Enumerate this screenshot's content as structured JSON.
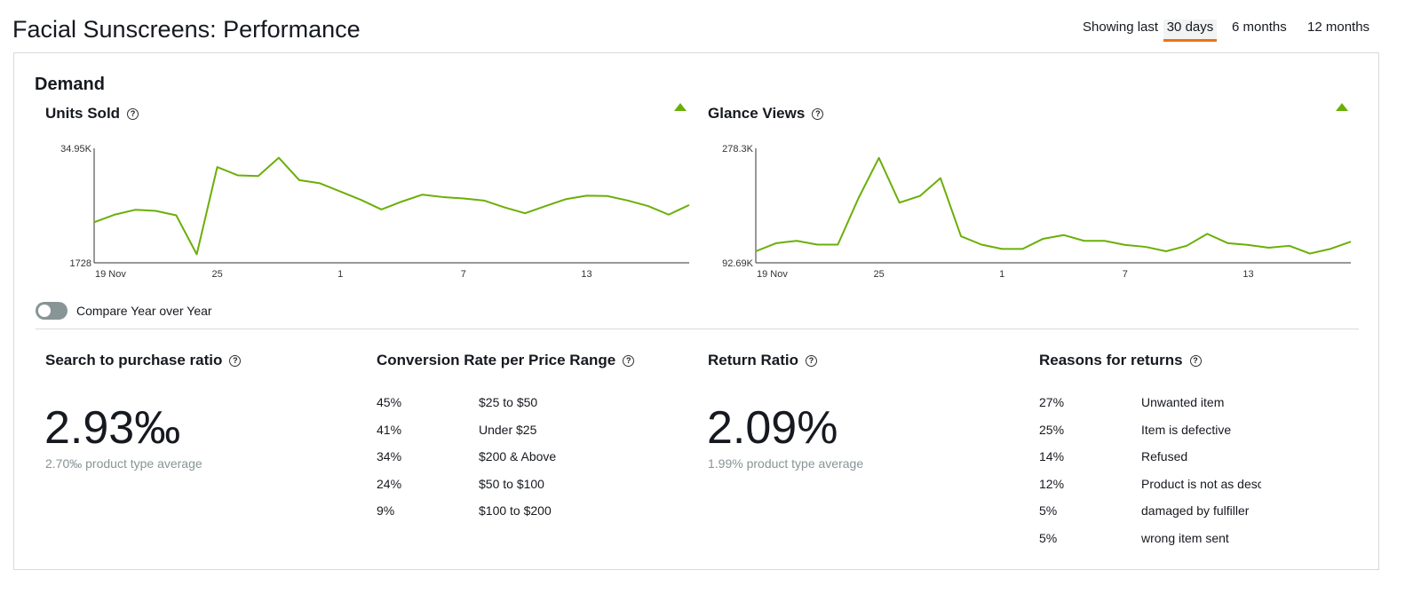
{
  "page_title": "Facial Sunscreens: Performance",
  "range": {
    "label": "Showing last",
    "options": [
      "30 days",
      "6 months",
      "12 months"
    ],
    "selected": "30 days"
  },
  "demand": {
    "heading": "Demand",
    "compare_label": "Compare Year over Year",
    "compare_on": false
  },
  "colors": {
    "line": "#6aaf08",
    "accent": "#ec7211"
  },
  "chart_data": [
    {
      "type": "line",
      "title": "Units Sold",
      "trend": "up",
      "y_top_label": "34.95K",
      "y_bottom_label": "1728",
      "ylim": [
        1728,
        34950
      ],
      "x_ticks": [
        {
          "index": 0,
          "label": "19 Nov"
        },
        {
          "index": 6,
          "label": "25"
        },
        {
          "index": 12,
          "label": "1"
        },
        {
          "index": 18,
          "label": "7"
        },
        {
          "index": 24,
          "label": "13"
        }
      ],
      "values": [
        13500,
        15700,
        17100,
        16800,
        15500,
        4200,
        29500,
        27100,
        26900,
        32200,
        25700,
        24800,
        22400,
        20000,
        17200,
        19500,
        21500,
        20800,
        20400,
        19800,
        17800,
        16100,
        18200,
        20200,
        21200,
        21100,
        19800,
        18200,
        15700,
        18500
      ]
    },
    {
      "type": "line",
      "title": "Glance Views",
      "trend": "up",
      "y_top_label": "278.3K",
      "y_bottom_label": "92.69K",
      "ylim": [
        92690,
        278300
      ],
      "x_ticks": [
        {
          "index": 0,
          "label": "19 Nov"
        },
        {
          "index": 6,
          "label": "25"
        },
        {
          "index": 12,
          "label": "1"
        },
        {
          "index": 18,
          "label": "7"
        },
        {
          "index": 24,
          "label": "13"
        }
      ],
      "values": [
        111400,
        124600,
        128300,
        122200,
        122200,
        197200,
        262800,
        190200,
        201000,
        230000,
        135800,
        122200,
        115200,
        115200,
        131600,
        137700,
        128300,
        128300,
        121700,
        118500,
        111400,
        120300,
        139600,
        124600,
        121700,
        117100,
        120300,
        107700,
        115200,
        126900
      ]
    }
  ],
  "search_ratio": {
    "heading": "Search to purchase ratio",
    "value": "2.93‰",
    "average": "2.70‰ product type average"
  },
  "conversion": {
    "heading": "Conversion Rate per Price Range",
    "rows": [
      {
        "pct": "45%",
        "label": "$25 to $50"
      },
      {
        "pct": "41%",
        "label": "Under $25"
      },
      {
        "pct": "34%",
        "label": "$200 & Above"
      },
      {
        "pct": "24%",
        "label": "$50 to $100"
      },
      {
        "pct": "9%",
        "label": "$100 to $200"
      }
    ]
  },
  "return_ratio": {
    "heading": "Return Ratio",
    "value": "2.09%",
    "average": "1.99% product type average"
  },
  "returns": {
    "heading": "Reasons for returns",
    "rows": [
      {
        "pct": "27%",
        "label": "Unwanted item"
      },
      {
        "pct": "25%",
        "label": "Item is defective"
      },
      {
        "pct": "14%",
        "label": "Refused"
      },
      {
        "pct": "12%",
        "label": "Product is not as described"
      },
      {
        "pct": "5%",
        "label": "damaged by fulfiller"
      },
      {
        "pct": "5%",
        "label": "wrong item sent"
      }
    ]
  }
}
